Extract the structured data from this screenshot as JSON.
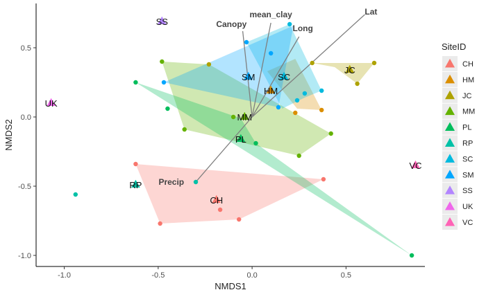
{
  "chart_data": {
    "type": "scatter",
    "xlabel": "NMDS1",
    "ylabel": "NMDS2",
    "xlim": [
      -1.15,
      0.92
    ],
    "ylim": [
      -1.08,
      0.82
    ],
    "x_ticks": [
      -1.0,
      -0.5,
      0.0,
      0.5
    ],
    "y_ticks": [
      -1.0,
      -0.5,
      0.0,
      0.5
    ],
    "x_tick_labels": [
      "-1.0",
      "-0.5",
      "0.0",
      "0.5"
    ],
    "y_tick_labels": [
      "-1.0",
      "-0.5",
      "0.0",
      "0.5"
    ],
    "grid": false,
    "legend": {
      "title": "SiteID",
      "position": "right",
      "entries": [
        "CH",
        "HM",
        "JC",
        "MM",
        "PL",
        "RP",
        "SC",
        "SM",
        "SS",
        "UK",
        "VC"
      ]
    },
    "colors": {
      "CH": "#F8766D",
      "HM": "#DB8E00",
      "JC": "#AEA200",
      "MM": "#64B200",
      "PL": "#00BD5C",
      "RP": "#00C1A7",
      "SC": "#00BADE",
      "SM": "#00A6FF",
      "SS": "#B385FF",
      "UK": "#EF67EB",
      "VC": "#FF63B6"
    },
    "hulls": [
      {
        "site": "CH",
        "points": [
          [
            -0.62,
            -0.34
          ],
          [
            0.38,
            -0.45
          ],
          [
            -0.07,
            -0.74
          ],
          [
            -0.49,
            -0.77
          ]
        ]
      },
      {
        "site": "HM",
        "points": [
          [
            0.24,
            0.06
          ],
          [
            0.37,
            0.05
          ],
          [
            0.23,
            0.42
          ],
          [
            0.08,
            0.33
          ]
        ]
      },
      {
        "site": "JC",
        "points": [
          [
            0.32,
            0.39
          ],
          [
            0.65,
            0.39
          ],
          [
            0.56,
            0.24
          ],
          [
            0.44,
            0.36
          ]
        ]
      },
      {
        "site": "MM",
        "points": [
          [
            -0.48,
            0.4
          ],
          [
            -0.23,
            0.38
          ],
          [
            0.42,
            -0.12
          ],
          [
            0.25,
            -0.28
          ],
          [
            -0.36,
            -0.09
          ]
        ]
      },
      {
        "site": "PL",
        "points": [
          [
            -0.62,
            0.25
          ],
          [
            0.85,
            -1.0
          ],
          [
            0.02,
            -0.19
          ],
          [
            -0.06,
            -0.01
          ]
        ]
      },
      {
        "site": "SC",
        "points": [
          [
            -0.03,
            0.54
          ],
          [
            0.2,
            0.67
          ],
          [
            0.37,
            0.19
          ],
          [
            0.28,
            0.14
          ],
          [
            0.16,
            0.06
          ]
        ]
      },
      {
        "site": "SM",
        "points": [
          [
            -0.47,
            0.25
          ],
          [
            0.02,
            0.54
          ],
          [
            0.22,
            0.66
          ],
          [
            0.14,
            0.07
          ]
        ]
      }
    ],
    "points": [
      {
        "site": "CH",
        "x": -0.62,
        "y": -0.34
      },
      {
        "site": "CH",
        "x": 0.38,
        "y": -0.45
      },
      {
        "site": "CH",
        "x": -0.07,
        "y": -0.74
      },
      {
        "site": "CH",
        "x": -0.49,
        "y": -0.77
      },
      {
        "site": "CH",
        "x": -0.17,
        "y": -0.67
      },
      {
        "site": "HM",
        "x": 0.37,
        "y": 0.05
      },
      {
        "site": "HM",
        "x": 0.23,
        "y": 0.03
      },
      {
        "site": "JC",
        "x": 0.32,
        "y": 0.39
      },
      {
        "site": "JC",
        "x": 0.65,
        "y": 0.39
      },
      {
        "site": "JC",
        "x": 0.56,
        "y": 0.24
      },
      {
        "site": "JC",
        "x": -0.23,
        "y": 0.38
      },
      {
        "site": "MM",
        "x": -0.48,
        "y": 0.4
      },
      {
        "site": "MM",
        "x": 0.42,
        "y": -0.12
      },
      {
        "site": "MM",
        "x": 0.25,
        "y": -0.28
      },
      {
        "site": "MM",
        "x": -0.36,
        "y": -0.09
      },
      {
        "site": "MM",
        "x": -0.1,
        "y": 0.0
      },
      {
        "site": "PL",
        "x": -0.62,
        "y": 0.25
      },
      {
        "site": "PL",
        "x": 0.85,
        "y": -1.0
      },
      {
        "site": "PL",
        "x": 0.02,
        "y": -0.19
      },
      {
        "site": "PL",
        "x": -0.45,
        "y": 0.06
      },
      {
        "site": "RP",
        "x": -0.94,
        "y": -0.56
      },
      {
        "site": "RP",
        "x": -0.3,
        "y": -0.47
      },
      {
        "site": "SC",
        "x": 0.2,
        "y": 0.67
      },
      {
        "site": "SC",
        "x": 0.37,
        "y": 0.19
      },
      {
        "site": "SC",
        "x": 0.28,
        "y": 0.17
      },
      {
        "site": "SC",
        "x": 0.24,
        "y": 0.12
      },
      {
        "site": "SM",
        "x": -0.47,
        "y": 0.25
      },
      {
        "site": "SM",
        "x": -0.03,
        "y": 0.54
      },
      {
        "site": "SM",
        "x": 0.1,
        "y": 0.46
      },
      {
        "site": "SM",
        "x": 0.14,
        "y": 0.07
      }
    ],
    "centroids": [
      {
        "site": "CH",
        "label": "CH",
        "x": -0.19,
        "y": -0.6
      },
      {
        "site": "HM",
        "label": "HM",
        "x": 0.1,
        "y": 0.19
      },
      {
        "site": "JC",
        "label": "JC",
        "x": 0.52,
        "y": 0.34
      },
      {
        "site": "MM",
        "label": "MM",
        "x": -0.04,
        "y": 0.0
      },
      {
        "site": "PL",
        "label": "PL",
        "x": -0.06,
        "y": -0.16
      },
      {
        "site": "RP",
        "label": "RP",
        "x": -0.62,
        "y": -0.49
      },
      {
        "site": "SC",
        "label": "SC",
        "x": 0.17,
        "y": 0.29
      },
      {
        "site": "SM",
        "label": "SM",
        "x": -0.02,
        "y": 0.29
      },
      {
        "site": "SS",
        "label": "SS",
        "x": -0.48,
        "y": 0.69
      },
      {
        "site": "UK",
        "label": "UK",
        "x": -1.07,
        "y": 0.1
      },
      {
        "site": "VC",
        "label": "VC",
        "x": 0.87,
        "y": -0.35
      }
    ],
    "vectors": [
      {
        "label": "Lat",
        "x": 0.6,
        "y": 0.74
      },
      {
        "label": "mean_clay",
        "x": 0.1,
        "y": 0.68
      },
      {
        "label": "Canopy",
        "x": -0.05,
        "y": 0.62
      },
      {
        "label": "Long",
        "x": 0.25,
        "y": 0.58
      },
      {
        "label": "Precip",
        "x": -0.3,
        "y": -0.47
      }
    ],
    "vector_origin": [
      0.0,
      0.0
    ],
    "vector_label_positions": [
      {
        "label": "Lat",
        "x": 0.6,
        "y": 0.74,
        "anchor": "start"
      },
      {
        "label": "mean_clay",
        "x": 0.1,
        "y": 0.72,
        "anchor": "middle"
      },
      {
        "label": "Canopy",
        "x": -0.11,
        "y": 0.65,
        "anchor": "middle"
      },
      {
        "label": "Long",
        "x": 0.27,
        "y": 0.62,
        "anchor": "middle"
      },
      {
        "label": "Precip",
        "x": -0.43,
        "y": -0.49,
        "anchor": "middle"
      }
    ]
  }
}
